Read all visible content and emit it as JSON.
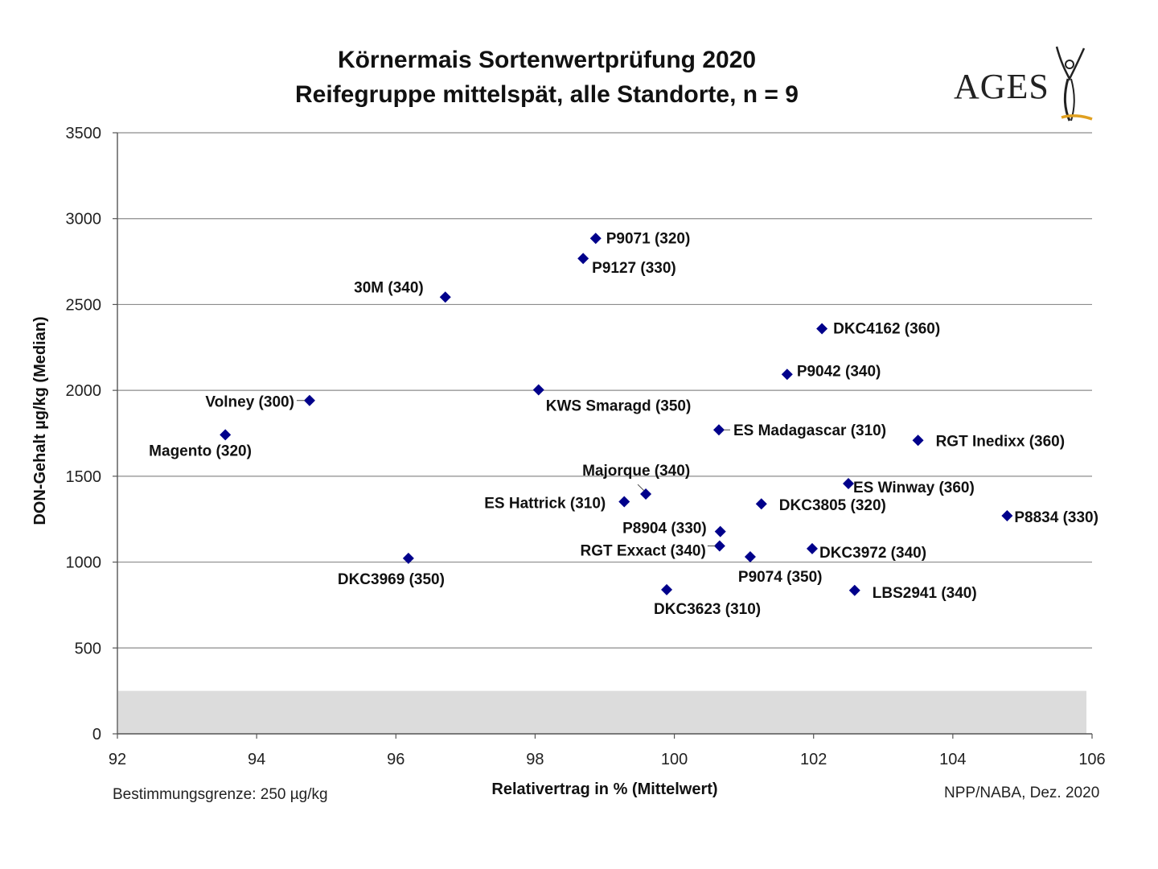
{
  "title": {
    "line1": "Körnermais Sortenwertprüfung 2020",
    "line2": "Reifegruppe mittelspät, alle Standorte, n = 9"
  },
  "logo": {
    "text": "AGES",
    "accent_color": "#e0a020"
  },
  "footer": {
    "left": "Bestimmungsgrenze: 250 µg/kg",
    "right": "NPP/NABA, Dez. 2020"
  },
  "chart_data": {
    "type": "scatter",
    "xlabel": "Relativertrag in % (Mittelwert)",
    "ylabel": "DON-Gehalt µg/kg (Median)",
    "xlim": [
      92,
      106
    ],
    "ylim": [
      0,
      3500
    ],
    "xticks": [
      92,
      94,
      96,
      98,
      100,
      102,
      104,
      106
    ],
    "yticks": [
      0,
      500,
      1000,
      1500,
      2000,
      2500,
      3000,
      3500
    ],
    "grid": "horizontal",
    "marker": "diamond",
    "marker_color": "#00008b",
    "detection_limit": {
      "value": 250,
      "color": "#dcdcdc"
    },
    "points": [
      {
        "label": "P9071  (320)",
        "x": 98.87,
        "y": 2885
      },
      {
        "label": "P9127  (330)",
        "x": 98.69,
        "y": 2768
      },
      {
        "label": "30M  (340)",
        "x": 96.71,
        "y": 2543
      },
      {
        "label": "DKC4162  (360)",
        "x": 102.12,
        "y": 2359
      },
      {
        "label": "P9042  (340)",
        "x": 101.62,
        "y": 2093
      },
      {
        "label": "KWS Smaragd (350)",
        "x": 98.05,
        "y": 2003
      },
      {
        "label": "Volney (300)",
        "x": 94.76,
        "y": 1941
      },
      {
        "label": "ES Madagascar  (310)",
        "x": 100.64,
        "y": 1770
      },
      {
        "label": "RGT Inedixx (360)",
        "x": 103.5,
        "y": 1709
      },
      {
        "label": "Magento (320)",
        "x": 93.55,
        "y": 1741
      },
      {
        "label": "Majorque (340)",
        "x": 99.59,
        "y": 1396
      },
      {
        "label": "ES Winway (360)",
        "x": 102.5,
        "y": 1457
      },
      {
        "label": "ES Hattrick (310)",
        "x": 99.28,
        "y": 1352
      },
      {
        "label": "DKC3805  (320)",
        "x": 101.25,
        "y": 1339
      },
      {
        "label": "P8834  (330)",
        "x": 104.78,
        "y": 1270
      },
      {
        "label": "P8904  (330)",
        "x": 100.66,
        "y": 1178
      },
      {
        "label": "RGT Exxact (340)",
        "x": 100.65,
        "y": 1094
      },
      {
        "label": "DKC3972  (340)",
        "x": 101.98,
        "y": 1078
      },
      {
        "label": "P9074  (350)",
        "x": 101.09,
        "y": 1031
      },
      {
        "label": "DKC3969  (350)",
        "x": 96.18,
        "y": 1022
      },
      {
        "label": "DKC3623  (310)",
        "x": 99.89,
        "y": 839
      },
      {
        "label": "LBS2941  (340)",
        "x": 102.59,
        "y": 835
      }
    ]
  }
}
